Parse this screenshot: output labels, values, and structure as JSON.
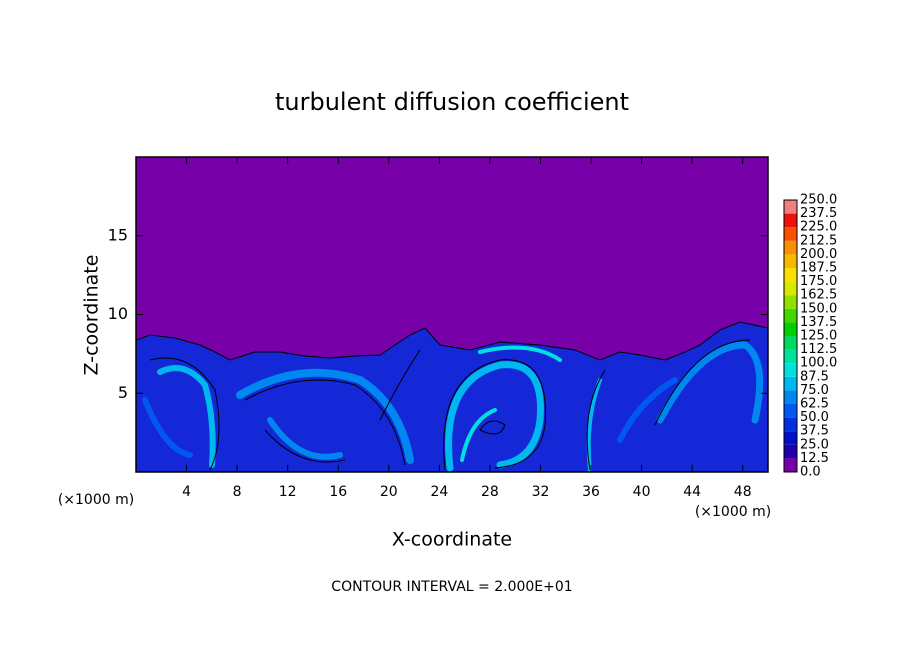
{
  "chart_data": {
    "type": "contour",
    "title": "turbulent diffusion coefficient",
    "x_label": "X-coordinate",
    "y_label": "Z-coordinate",
    "x_unit": "(×1000 m)",
    "annotation": "CONTOUR INTERVAL = 2.000E+01",
    "xlim": [
      0,
      50
    ],
    "xticks": [
      4,
      8,
      12,
      16,
      20,
      24,
      28,
      32,
      36,
      40,
      44,
      48
    ],
    "ylim": [
      0,
      20
    ],
    "yticks": [
      5,
      10,
      15
    ],
    "colorbar": {
      "levels": [
        {
          "value": 0,
          "label": "0.0"
        },
        {
          "value": 12.5,
          "label": "12.5"
        },
        {
          "value": 25,
          "label": "25.0"
        },
        {
          "value": 37.5,
          "label": "37.5"
        },
        {
          "value": 50,
          "label": "50.0"
        },
        {
          "value": 62.5,
          "label": "62.5"
        },
        {
          "value": 75,
          "label": "75.0"
        },
        {
          "value": 87.5,
          "label": "87.5"
        },
        {
          "value": 100,
          "label": "100.0"
        },
        {
          "value": 112.5,
          "label": "112.5"
        },
        {
          "value": 125,
          "label": "125.0"
        },
        {
          "value": 137.5,
          "label": "137.5"
        },
        {
          "value": 150,
          "label": "150.0"
        },
        {
          "value": 162.5,
          "label": "162.5"
        },
        {
          "value": 175,
          "label": "175.0"
        },
        {
          "value": 187.5,
          "label": "187.5"
        },
        {
          "value": 200,
          "label": "200.0"
        },
        {
          "value": 212.5,
          "label": "212.5"
        },
        {
          "value": 225,
          "label": "225.0"
        },
        {
          "value": 237.5,
          "label": "237.5"
        },
        {
          "value": 250,
          "label": "250.0"
        }
      ],
      "colors": [
        "#7800a8",
        "#2000a8",
        "#0010c8",
        "#0030e0",
        "#0058f0",
        "#0088f0",
        "#00b8f0",
        "#00e0e0",
        "#00e0a0",
        "#00d860",
        "#00d000",
        "#40d800",
        "#90e000",
        "#d8e800",
        "#f8e000",
        "#f8b800",
        "#f89000",
        "#f85000",
        "#f01010",
        "#f08080"
      ]
    }
  }
}
